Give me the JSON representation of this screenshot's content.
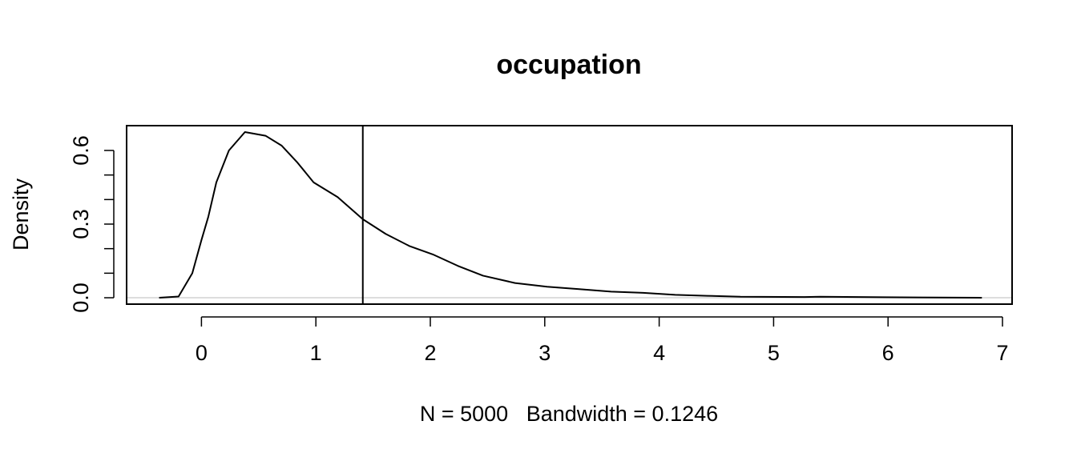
{
  "chart_data": {
    "type": "line",
    "title": "occupation",
    "xlabel": "N = 5000   Bandwidth = 0.1246",
    "ylabel": "Density",
    "x": [
      -0.37,
      -0.2,
      -0.08,
      0,
      0.06,
      0.13,
      0.24,
      0.38,
      0.56,
      0.7,
      0.84,
      0.98,
      1.19,
      1.41,
      1.61,
      1.82,
      2.03,
      2.24,
      2.46,
      2.74,
      3.02,
      3.3,
      3.58,
      3.86,
      4.14,
      4.42,
      4.71,
      5.27,
      5.41,
      5.97,
      6.82
    ],
    "series": [
      {
        "name": "density",
        "color": "#000000",
        "values": [
          0,
          0.005,
          0.1,
          0.235,
          0.33,
          0.47,
          0.6,
          0.675,
          0.66,
          0.62,
          0.55,
          0.47,
          0.41,
          0.32,
          0.26,
          0.21,
          0.175,
          0.13,
          0.09,
          0.06,
          0.045,
          0.035,
          0.025,
          0.02,
          0.012,
          0.008,
          0.004,
          0.003,
          0.004,
          0.002,
          0
        ]
      }
    ],
    "xlim": [
      -0.654,
      7.084
    ],
    "ylim": [
      -0.026,
      0.701
    ],
    "xticks": [
      0,
      1,
      2,
      3,
      4,
      5,
      6,
      7
    ],
    "yticks": [
      {
        "value": 0,
        "label": "0.0"
      },
      {
        "value": 0.3,
        "label": "0.3"
      },
      {
        "value": 0.6,
        "label": "0.6"
      }
    ],
    "yminorticks": [
      0.1,
      0.2,
      0.4,
      0.5
    ],
    "vline": 1.41,
    "hline": 0,
    "hline_color": "#dddddd"
  }
}
